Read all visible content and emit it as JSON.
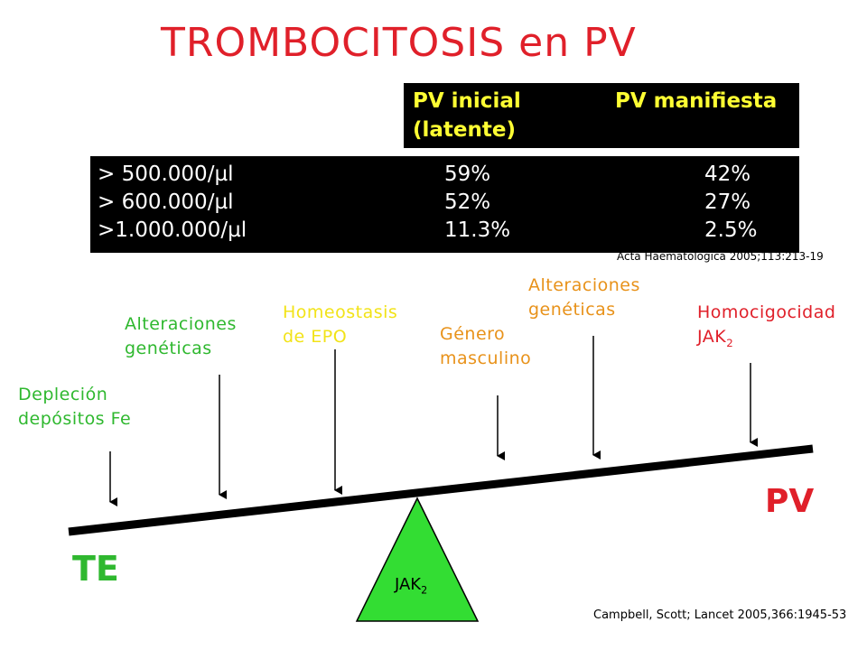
{
  "title": "TROMBOCITOSIS en PV",
  "table": {
    "header": {
      "col1_line1": "PV inicial",
      "col1_line2": "(latente)",
      "col2": "PV manifiesta"
    },
    "rows": [
      {
        "threshold": "> 500.000/µl",
        "inicial": "59%",
        "manifiesta": "42%"
      },
      {
        "threshold": "> 600.000/µl",
        "inicial": "52%",
        "manifiesta": "27%"
      },
      {
        "threshold": ">1.000.000/µl",
        "inicial": "11.3%",
        "manifiesta": "2.5%"
      }
    ],
    "reference": "Acta Haematologica 2005;113:213-19"
  },
  "factors": {
    "depletion": {
      "line1": "Depleción",
      "line2": "depósitos Fe"
    },
    "genetic_left": {
      "line1": "Alteraciones",
      "line2": "genéticas"
    },
    "epo": {
      "line1": "Homeostasis",
      "line2": "de EPO"
    },
    "gender": {
      "line1": "Género",
      "line2": "masculino"
    },
    "genetic_right": {
      "line1": "Alteraciones",
      "line2": "genéticas"
    },
    "homozygosity": {
      "line1": "Homocigocidad",
      "line2_base": "JAK",
      "line2_sub": "2"
    }
  },
  "scale": {
    "left_label": "TE",
    "right_label": "PV",
    "fulcrum_base": "JAK",
    "fulcrum_sub": "2"
  },
  "reference_bottom": "Campbell, Scott; Lancet 2005,366:1945-53",
  "colors": {
    "title_red": "#e0202a",
    "header_yellow": "#ffff33",
    "green": "#2fb82f",
    "yellow": "#f2e318",
    "orange": "#e8921a",
    "fulcrum_green": "#33dd33"
  }
}
